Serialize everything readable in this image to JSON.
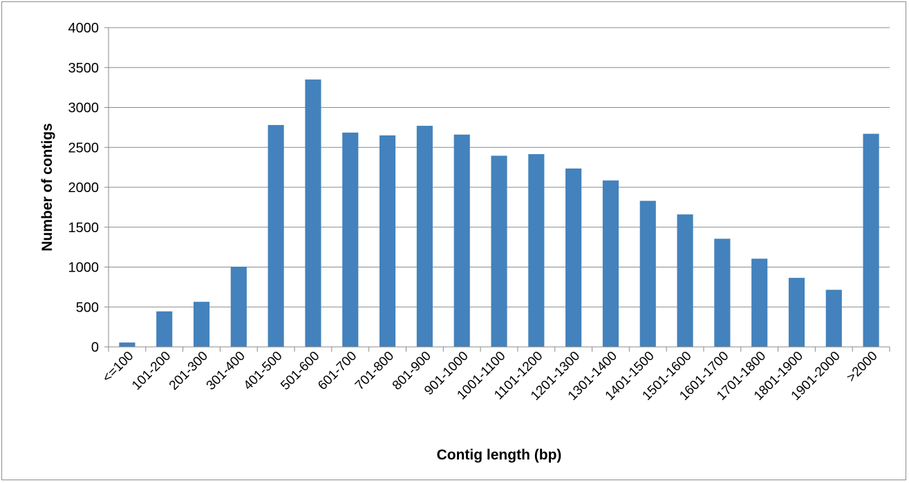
{
  "chart_data": {
    "type": "bar",
    "xlabel": "Contig length (bp)",
    "ylabel": "Number of contigs",
    "ylim": [
      0,
      4000
    ],
    "ytick_step": 500,
    "grid": true,
    "bar_color": "#4382bc",
    "categories": [
      "<=100",
      "101-200",
      "201-300",
      "301-400",
      "401-500",
      "501-600",
      "601-700",
      "701-800",
      "801-900",
      "901-1000",
      "1001-1100",
      "1101-1200",
      "1201-1300",
      "1301-1400",
      "1401-1500",
      "1501-1600",
      "1601-1700",
      "1701-1800",
      "1801-1900",
      "1901-2000",
      ">2000"
    ],
    "series": [
      {
        "values": [
          55,
          445,
          565,
          1005,
          2780,
          3350,
          2685,
          2650,
          2770,
          2660,
          2395,
          2415,
          2235,
          2085,
          1830,
          1660,
          1355,
          1105,
          865,
          715,
          2670
        ]
      }
    ]
  }
}
